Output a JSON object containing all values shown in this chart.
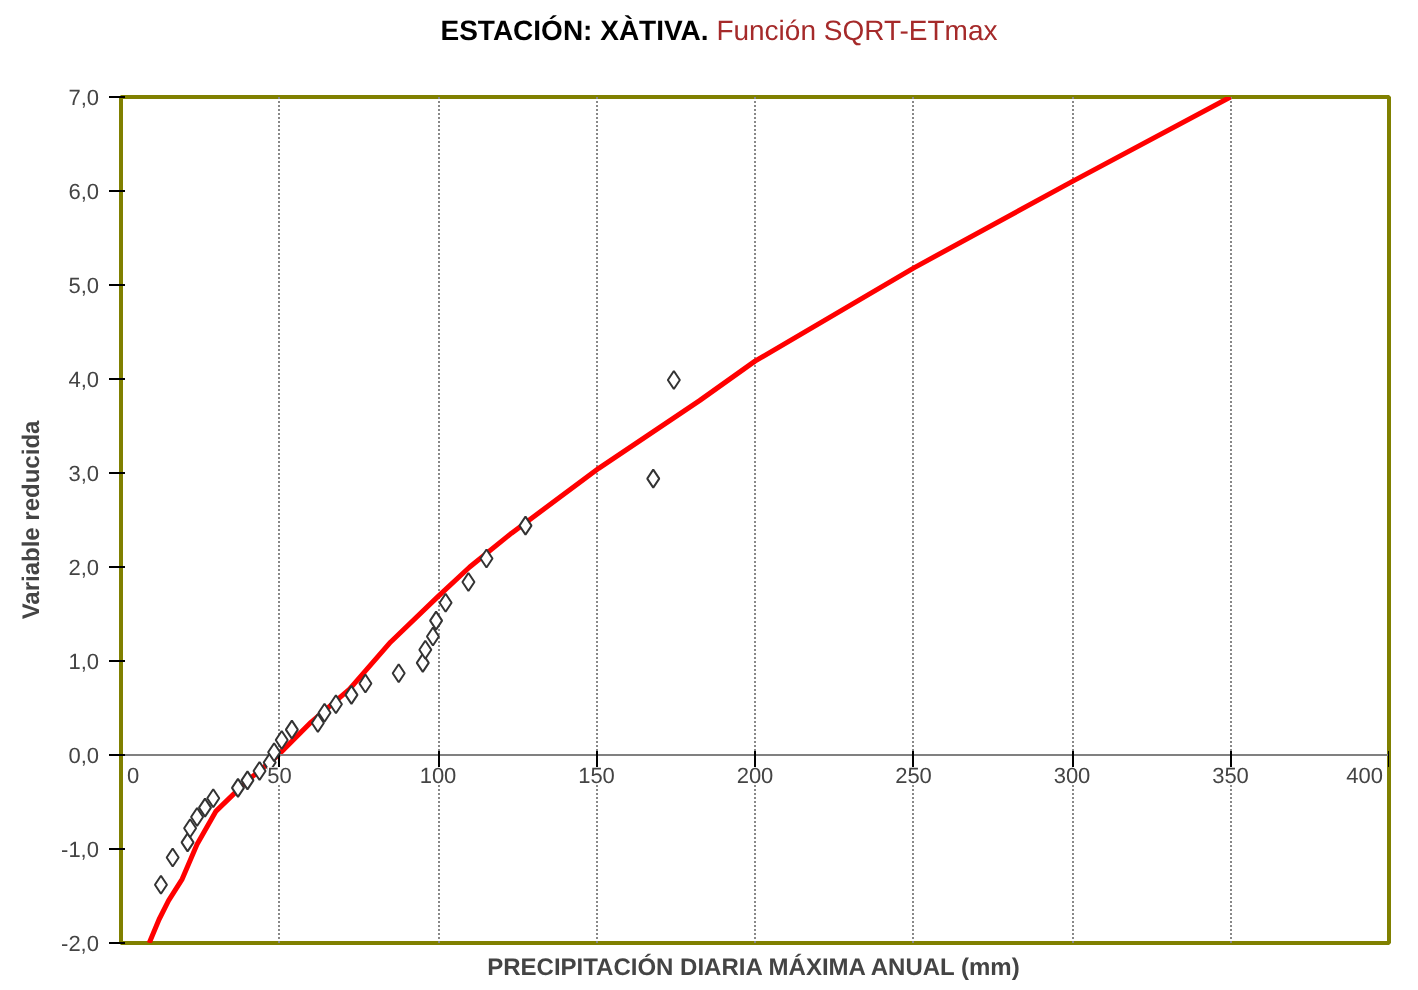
{
  "chart_data": {
    "type": "scatter",
    "title": "ESTACIÓN: XÀTIVA.",
    "subtitle": "Función SQRT-ETmax",
    "xlabel": "PRECIPITACIÓN DIARIA MÁXIMA ANUAL (mm)",
    "ylabel": "Variable reducida",
    "xlim": [
      0,
      400
    ],
    "ylim": [
      -2,
      7
    ],
    "xticks": [
      0,
      50,
      100,
      150,
      200,
      250,
      300,
      350,
      400
    ],
    "yticks": [
      {
        "value": -2,
        "label": "-2,0"
      },
      {
        "value": -1,
        "label": "-1,0"
      },
      {
        "value": 0,
        "label": "0,0"
      },
      {
        "value": 1,
        "label": "1,0"
      },
      {
        "value": 2,
        "label": "2,0"
      },
      {
        "value": 3,
        "label": "3,0"
      },
      {
        "value": 4,
        "label": "4,0"
      },
      {
        "value": 5,
        "label": "5,0"
      },
      {
        "value": 6,
        "label": "6,0"
      },
      {
        "value": 7,
        "label": "7,0"
      }
    ],
    "grid": "x",
    "series": [
      {
        "marker": "diamond",
        "color": "#333333",
        "x": [
          12.6,
          16.3,
          21.0,
          21.8,
          24.0,
          26.5,
          29.1,
          36.9,
          39.9,
          43.7,
          46.9,
          48.3,
          50.7,
          53.9,
          62.1,
          64.2,
          67.8,
          72.7,
          77.1,
          87.6,
          95.2,
          96.0,
          98.4,
          99.4,
          102.4,
          109.6,
          115.3,
          127.6,
          167.9,
          174.4
        ],
        "values": [
          -1.38,
          -1.09,
          -0.93,
          -0.78,
          -0.66,
          -0.56,
          -0.46,
          -0.35,
          -0.27,
          -0.17,
          -0.08,
          0.03,
          0.16,
          0.27,
          0.34,
          0.45,
          0.54,
          0.64,
          0.76,
          0.87,
          0.98,
          1.12,
          1.26,
          1.43,
          1.62,
          1.84,
          2.09,
          2.44,
          2.94,
          3.99
        ]
      },
      {
        "type": "line",
        "marker": "none",
        "line_style": "solid",
        "color": "#ff0000",
        "x": [
          8.9,
          12,
          15,
          19.3,
          24,
          29.9,
          40,
          49.0,
          60,
          72.1,
          85,
          99.8,
          110,
          123.2,
          150.7,
          182.5,
          200,
          250,
          300,
          350
        ],
        "values": [
          -2.0,
          -1.75,
          -1.55,
          -1.32,
          -0.95,
          -0.6,
          -0.27,
          -0.02,
          0.35,
          0.7,
          1.2,
          1.68,
          2.0,
          2.36,
          3.05,
          3.77,
          4.19,
          5.18,
          6.1,
          7.0
        ]
      }
    ]
  }
}
